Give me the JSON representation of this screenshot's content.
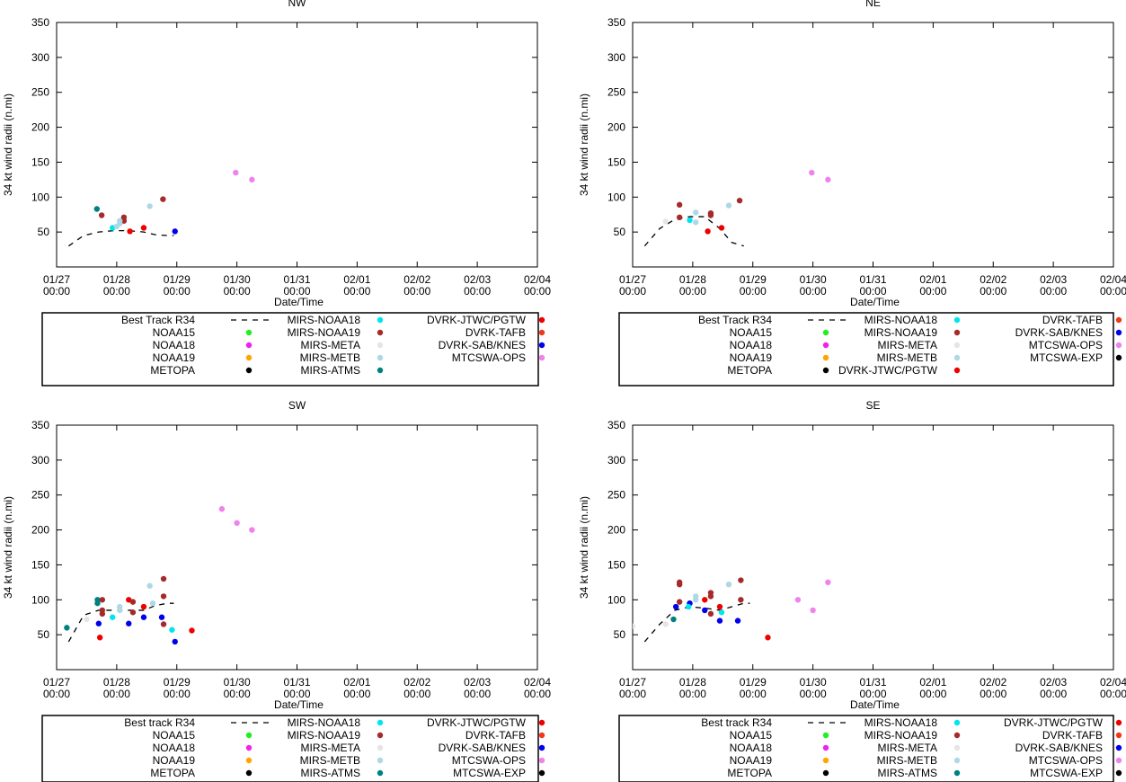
{
  "page": {
    "x_axis_label": "Date/Time",
    "y_axis_label": "34 kt wind radii (n.mi)"
  },
  "axes": {
    "x_ticks": [
      {
        "v": 0,
        "l1": "01/27",
        "l2": "00:00"
      },
      {
        "v": 1,
        "l1": "01/28",
        "l2": "00:00"
      },
      {
        "v": 2,
        "l1": "01/29",
        "l2": "00:00"
      },
      {
        "v": 3,
        "l1": "01/30",
        "l2": "00:00"
      },
      {
        "v": 4,
        "l1": "01/31",
        "l2": "00:00"
      },
      {
        "v": 5,
        "l1": "02/01",
        "l2": "00:00"
      },
      {
        "v": 6,
        "l1": "02/02",
        "l2": "00:00"
      },
      {
        "v": 7,
        "l1": "02/03",
        "l2": "00:00"
      },
      {
        "v": 8,
        "l1": "02/04",
        "l2": "00:00"
      }
    ],
    "y_ticks": [
      50,
      100,
      150,
      200,
      250,
      300,
      350
    ],
    "xlim": [
      0,
      8
    ],
    "ylim": [
      0,
      350
    ]
  },
  "colors": {
    "NOAA15": "#22ee22",
    "NOAA18": "#ee22ee",
    "NOAA19": "#ffa500",
    "METOPA": "#000000",
    "MIRS-NOAA18": "#00e5ee",
    "MIRS-NOAA19": "#a52a2a",
    "MIRS-META": "#e8e4e4",
    "MIRS-METB": "#add8e6",
    "MIRS-ATMS": "#008080",
    "DVRK-JTWC/PGTW": "#ee0000",
    "DVRK-TAFB": "#ee3a1a",
    "DVRK-SAB/KNES": "#0000ee",
    "MTCSWA-OPS": "#ee82ee",
    "MTCSWA-EXP": "#000000"
  },
  "chart_data": [
    {
      "type": "scatter",
      "title": "NW",
      "xlabel": "Date/Time",
      "ylabel": "34 kt wind radii (n.mi)",
      "xlim": [
        0,
        8
      ],
      "ylim": [
        0,
        350
      ],
      "best_track": {
        "name": "Best Track R34",
        "x": [
          0.2,
          0.45,
          0.7,
          0.95,
          1.2,
          1.45,
          1.65,
          1.85,
          1.95
        ],
        "y": [
          30,
          45,
          50,
          52,
          52,
          50,
          46,
          45,
          45
        ]
      },
      "legend_columns": [
        [
          "Best Track R34",
          "NOAA15",
          "NOAA18",
          "NOAA19",
          "METOPA"
        ],
        [
          "MIRS-NOAA18",
          "MIRS-NOAA19",
          "MIRS-META",
          "MIRS-METB",
          "MIRS-ATMS"
        ],
        [
          "DVRK-JTWC/PGTW",
          "DVRK-TAFB",
          "DVRK-SAB/KNES",
          "MTCSWA-OPS"
        ]
      ],
      "series": [
        {
          "name": "MIRS-ATMS",
          "x": [
            0.67
          ],
          "y": [
            83
          ]
        },
        {
          "name": "MIRS-NOAA19",
          "x": [
            0.75,
            1.12,
            1.12,
            1.77
          ],
          "y": [
            74,
            66,
            71,
            97
          ]
        },
        {
          "name": "MIRS-NOAA18",
          "x": [
            0.93
          ],
          "y": [
            56
          ]
        },
        {
          "name": "MIRS-METB",
          "x": [
            1.0,
            1.05,
            1.05,
            1.55
          ],
          "y": [
            58,
            62,
            66,
            87
          ]
        },
        {
          "name": "DVRK-JTWC/PGTW",
          "x": [
            1.22,
            1.45
          ],
          "y": [
            51,
            56
          ]
        },
        {
          "name": "DVRK-SAB/KNES",
          "x": [
            1.97
          ],
          "y": [
            51
          ]
        },
        {
          "name": "MTCSWA-OPS",
          "x": [
            2.98,
            3.25
          ],
          "y": [
            135,
            125
          ]
        }
      ]
    },
    {
      "type": "scatter",
      "title": "NE",
      "xlabel": "Date/Time",
      "ylabel": "34 kt wind radii (n.mi)",
      "xlim": [
        0,
        8
      ],
      "ylim": [
        0,
        350
      ],
      "best_track": {
        "name": "Best Track R34",
        "x": [
          0.2,
          0.45,
          0.7,
          0.95,
          1.2,
          1.45,
          1.65,
          1.85
        ],
        "y": [
          30,
          55,
          68,
          72,
          72,
          55,
          35,
          30
        ]
      },
      "legend_columns": [
        [
          "Best Track R34",
          "NOAA15",
          "NOAA18",
          "NOAA19",
          "METOPA"
        ],
        [
          "MIRS-NOAA18",
          "MIRS-NOAA19",
          "MIRS-META",
          "MIRS-METB",
          "DVRK-JTWC/PGTW"
        ],
        [
          "DVRK-TAFB",
          "DVRK-SAB/KNES",
          "MTCSWA-OPS",
          "MTCSWA-EXP"
        ]
      ],
      "series": [
        {
          "name": "MIRS-META",
          "x": [
            0.55
          ],
          "y": [
            65
          ]
        },
        {
          "name": "MIRS-NOAA19",
          "x": [
            0.78,
            0.78,
            1.3,
            1.3,
            1.78
          ],
          "y": [
            71,
            89,
            74,
            77,
            95
          ]
        },
        {
          "name": "MIRS-NOAA18",
          "x": [
            0.95
          ],
          "y": [
            67
          ]
        },
        {
          "name": "MIRS-METB",
          "x": [
            1.05,
            1.05,
            1.6
          ],
          "y": [
            64,
            78,
            88
          ]
        },
        {
          "name": "DVRK-JTWC/PGTW",
          "x": [
            1.25,
            1.48
          ],
          "y": [
            51,
            56
          ]
        },
        {
          "name": "MTCSWA-OPS",
          "x": [
            2.98,
            3.25
          ],
          "y": [
            135,
            125
          ]
        }
      ]
    },
    {
      "type": "scatter",
      "title": "SW",
      "xlabel": "Date/Time",
      "ylabel": "34 kt wind radii (n.mi)",
      "xlim": [
        0,
        8
      ],
      "ylim": [
        0,
        350
      ],
      "best_track": {
        "name": "Best track R34",
        "x": [
          0.2,
          0.45,
          0.7,
          0.95,
          1.2,
          1.45,
          1.65,
          1.85,
          1.95
        ],
        "y": [
          40,
          78,
          85,
          85,
          85,
          85,
          92,
          95,
          95
        ]
      },
      "legend_columns": [
        [
          "Best track R34",
          "NOAA15",
          "NOAA18",
          "NOAA19",
          "METOPA"
        ],
        [
          "MIRS-NOAA18",
          "MIRS-NOAA19",
          "MIRS-META",
          "MIRS-METB",
          "MIRS-ATMS"
        ],
        [
          "DVRK-JTWC/PGTW",
          "DVRK-TAFB",
          "DVRK-SAB/KNES",
          "MTCSWA-OPS",
          "MTCSWA-EXP"
        ]
      ],
      "series": [
        {
          "name": "MIRS-ATMS",
          "x": [
            0.17,
            0.68,
            0.68
          ],
          "y": [
            60,
            95,
            100
          ]
        },
        {
          "name": "MIRS-META",
          "x": [
            0.5
          ],
          "y": [
            72
          ]
        },
        {
          "name": "DVRK-SAB/KNES",
          "x": [
            0.7,
            1.2,
            1.45,
            1.75,
            1.97
          ],
          "y": [
            66,
            66,
            75,
            75,
            40
          ]
        },
        {
          "name": "DVRK-JTWC/PGTW",
          "x": [
            0.72,
            1.2,
            1.45,
            2.25
          ],
          "y": [
            46,
            100,
            90,
            56
          ]
        },
        {
          "name": "MIRS-NOAA19",
          "x": [
            0.76,
            0.76,
            0.76,
            1.27,
            1.27,
            1.78,
            1.78,
            1.78
          ],
          "y": [
            80,
            85,
            100,
            82,
            97,
            65,
            105,
            130
          ]
        },
        {
          "name": "MIRS-NOAA18",
          "x": [
            0.93,
            1.92
          ],
          "y": [
            75,
            57
          ]
        },
        {
          "name": "MIRS-METB",
          "x": [
            1.05,
            1.05,
            1.55,
            1.6
          ],
          "y": [
            85,
            90,
            120,
            95
          ]
        },
        {
          "name": "MTCSWA-OPS",
          "x": [
            2.75,
            3.0,
            3.25
          ],
          "y": [
            230,
            210,
            200
          ]
        }
      ]
    },
    {
      "type": "scatter",
      "title": "SE",
      "xlabel": "Date/Time",
      "ylabel": "34 kt wind radii (n.mi)",
      "xlim": [
        0,
        8
      ],
      "ylim": [
        0,
        350
      ],
      "best_track": {
        "name": "Best track R34",
        "x": [
          0.2,
          0.45,
          0.7,
          0.95,
          1.2,
          1.45,
          1.65,
          1.85,
          1.95
        ],
        "y": [
          40,
          65,
          85,
          90,
          88,
          85,
          90,
          95,
          95
        ]
      },
      "legend_columns": [
        [
          "Best track R34",
          "NOAA15",
          "NOAA18",
          "NOAA19",
          "METOPA"
        ],
        [
          "MIRS-NOAA18",
          "MIRS-NOAA19",
          "MIRS-META",
          "MIRS-METB",
          "MIRS-ATMS"
        ],
        [
          "DVRK-JTWC/PGTW",
          "DVRK-TAFB",
          "DVRK-SAB/KNES",
          "MTCSWA-OPS",
          "MTCSWA-EXP"
        ]
      ],
      "series": [
        {
          "name": "MIRS-META",
          "x": [
            0.0,
            0.55
          ],
          "y": [
            62,
            65
          ]
        },
        {
          "name": "MIRS-ATMS",
          "x": [
            0.68
          ],
          "y": [
            72
          ]
        },
        {
          "name": "DVRK-SAB/KNES",
          "x": [
            0.72,
            0.95,
            1.2,
            1.45,
            1.75
          ],
          "y": [
            90,
            95,
            85,
            70,
            70
          ]
        },
        {
          "name": "MIRS-NOAA19",
          "x": [
            0.78,
            0.78,
            0.78,
            1.3,
            1.3,
            1.3,
            1.8,
            1.8
          ],
          "y": [
            97,
            122,
            125,
            80,
            105,
            110,
            100,
            128
          ]
        },
        {
          "name": "MIRS-NOAA18",
          "x": [
            0.93,
            1.48
          ],
          "y": [
            90,
            82
          ]
        },
        {
          "name": "MIRS-METB",
          "x": [
            1.05,
            1.05,
            1.6
          ],
          "y": [
            100,
            105,
            122
          ]
        },
        {
          "name": "DVRK-JTWC/PGTW",
          "x": [
            1.2,
            1.45,
            2.25
          ],
          "y": [
            100,
            90,
            46
          ]
        },
        {
          "name": "MTCSWA-OPS",
          "x": [
            2.75,
            3.0,
            3.25
          ],
          "y": [
            100,
            85,
            125
          ]
        }
      ]
    }
  ]
}
